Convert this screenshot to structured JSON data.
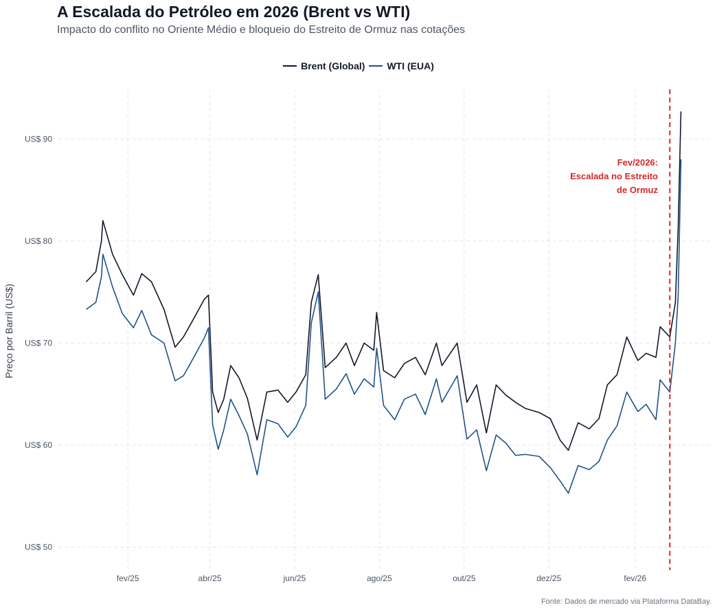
{
  "chart_data": {
    "type": "line",
    "title": "A Escalada do Petróleo em 2026 (Brent vs WTI)",
    "subtitle": "Impacto do conflito no Oriente Médio e bloqueio do Estreito de Ormuz nas cotações",
    "ylabel": "Preço por Barril (US$)",
    "xlabel": "",
    "caption": "Fonte: Dados de mercado via Plataforma DataBay.",
    "legend_position": "top",
    "grid": true,
    "ylim": [
      48.3,
      95.2
    ],
    "xlim": [
      "2024-12-13",
      "2026-03-27"
    ],
    "y_ticks": [
      {
        "value": 50,
        "label": "US$ 50"
      },
      {
        "value": 60,
        "label": "US$ 60"
      },
      {
        "value": 70,
        "label": "US$ 70"
      },
      {
        "value": 80,
        "label": "US$ 80"
      },
      {
        "value": 90,
        "label": "US$ 90"
      }
    ],
    "x_ticks": [
      {
        "date": "2025-02-01",
        "label": "fev/25"
      },
      {
        "date": "2025-04-01",
        "label": "abr/25"
      },
      {
        "date": "2025-06-01",
        "label": "jun/25"
      },
      {
        "date": "2025-08-01",
        "label": "ago/25"
      },
      {
        "date": "2025-10-01",
        "label": "out/25"
      },
      {
        "date": "2025-12-01",
        "label": "dez/25"
      },
      {
        "date": "2026-02-01",
        "label": "fev/26"
      }
    ],
    "event": {
      "date": "2026-02-26",
      "color": "#d62828",
      "label_lines": [
        "Fev/2026:",
        "Escalada no Estreito",
        "de Ormuz"
      ]
    },
    "x": [
      "2025-01-02",
      "2025-01-09",
      "2025-01-13",
      "2025-01-14",
      "2025-01-21",
      "2025-01-28",
      "2025-02-05",
      "2025-02-11",
      "2025-02-18",
      "2025-02-27",
      "2025-03-07",
      "2025-03-13",
      "2025-03-20",
      "2025-03-28",
      "2025-03-31",
      "2025-04-03",
      "2025-04-07",
      "2025-04-11",
      "2025-04-16",
      "2025-04-22",
      "2025-04-28",
      "2025-05-05",
      "2025-05-12",
      "2025-05-20",
      "2025-05-27",
      "2025-06-02",
      "2025-06-09",
      "2025-06-13",
      "2025-06-18",
      "2025-06-23",
      "2025-07-01",
      "2025-07-08",
      "2025-07-14",
      "2025-07-21",
      "2025-07-28",
      "2025-07-30",
      "2025-08-04",
      "2025-08-12",
      "2025-08-19",
      "2025-08-27",
      "2025-09-03",
      "2025-09-11",
      "2025-09-15",
      "2025-09-26",
      "2025-10-03",
      "2025-10-10",
      "2025-10-17",
      "2025-10-24",
      "2025-10-31",
      "2025-11-07",
      "2025-11-14",
      "2025-11-24",
      "2025-12-02",
      "2025-12-09",
      "2025-12-15",
      "2025-12-22",
      "2025-12-30",
      "2026-01-06",
      "2026-01-12",
      "2026-01-19",
      "2026-01-26",
      "2026-02-03",
      "2026-02-09",
      "2026-02-16",
      "2026-02-19",
      "2026-02-26",
      "2026-03-02",
      "2026-03-04",
      "2026-03-06"
    ],
    "series": [
      {
        "name": "Brent (Global)",
        "color": "#111827",
        "values": [
          76.0,
          77.0,
          80.0,
          82.0,
          78.7,
          76.7,
          74.7,
          76.8,
          76.0,
          73.3,
          69.6,
          70.6,
          72.3,
          74.3,
          74.7,
          65.2,
          63.2,
          64.5,
          67.8,
          66.6,
          64.6,
          60.5,
          65.2,
          65.4,
          64.2,
          65.2,
          66.9,
          74.0,
          76.7,
          67.6,
          68.6,
          70.0,
          67.8,
          70.0,
          69.3,
          73.0,
          67.3,
          66.6,
          68.0,
          68.6,
          66.9,
          70.0,
          67.8,
          70.0,
          64.2,
          65.9,
          61.2,
          65.9,
          64.9,
          64.2,
          63.6,
          63.2,
          62.6,
          60.5,
          59.5,
          62.2,
          61.6,
          62.6,
          65.9,
          66.9,
          70.6,
          68.3,
          69.0,
          68.6,
          71.6,
          70.6,
          74.0,
          81.4,
          92.7
        ]
      },
      {
        "name": "WTI (EUA)",
        "color": "#1f528a",
        "values": [
          73.3,
          74.0,
          76.5,
          78.7,
          75.5,
          72.9,
          71.5,
          73.2,
          70.8,
          70.0,
          66.3,
          66.8,
          68.5,
          70.5,
          71.5,
          62.0,
          59.6,
          61.5,
          64.5,
          62.9,
          61.1,
          57.1,
          62.5,
          62.1,
          60.8,
          61.8,
          63.9,
          72.0,
          75.0,
          64.5,
          65.5,
          67.0,
          65.0,
          66.5,
          65.7,
          69.5,
          63.9,
          62.5,
          64.5,
          65.0,
          63.0,
          66.5,
          64.2,
          66.8,
          60.6,
          61.5,
          57.5,
          61.0,
          60.2,
          59.0,
          59.1,
          58.9,
          57.8,
          56.5,
          55.3,
          58.0,
          57.6,
          58.4,
          60.5,
          61.9,
          65.2,
          63.3,
          64.0,
          62.5,
          66.4,
          65.2,
          70.0,
          74.7,
          88.0
        ]
      }
    ]
  }
}
